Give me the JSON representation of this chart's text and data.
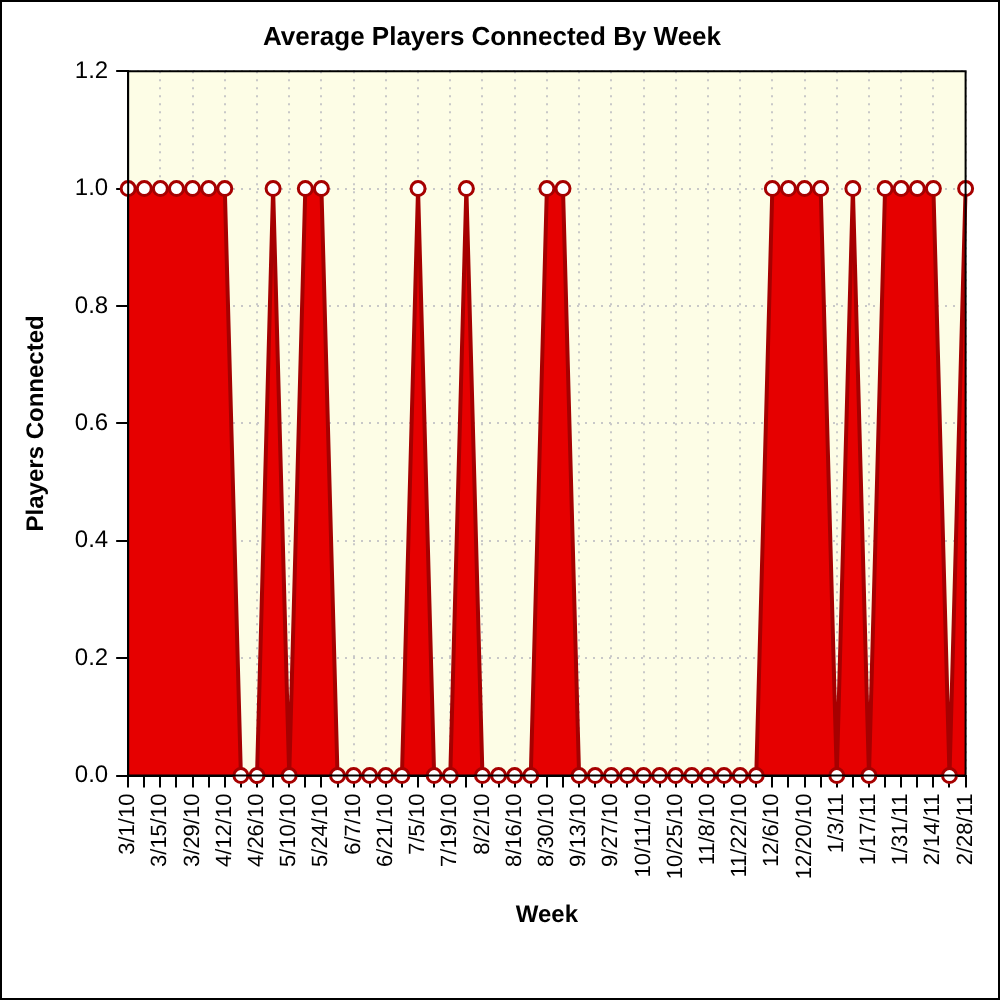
{
  "chart_data": {
    "type": "area",
    "title": "Average Players Connected By Week",
    "xlabel": "Week",
    "ylabel": "Players Connected",
    "categories": [
      "3/1/10",
      null,
      "3/15/10",
      null,
      "3/29/10",
      null,
      "4/12/10",
      null,
      "4/26/10",
      null,
      "5/10/10",
      null,
      "5/24/10",
      null,
      "6/7/10",
      null,
      "6/21/10",
      null,
      "7/5/10",
      null,
      "7/19/10",
      null,
      "8/2/10",
      null,
      "8/16/10",
      null,
      "8/30/10",
      null,
      "9/13/10",
      null,
      "9/27/10",
      null,
      "10/11/10",
      null,
      "10/25/10",
      null,
      "11/8/10",
      null,
      "11/22/10",
      null,
      "12/6/10",
      null,
      "12/20/10",
      null,
      "1/3/11",
      null,
      "1/17/11",
      null,
      "1/31/11",
      null,
      "2/14/11",
      null,
      "2/28/11"
    ],
    "values": [
      1,
      1,
      1,
      1,
      1,
      1,
      1,
      0,
      0,
      1,
      0,
      1,
      1,
      0,
      0,
      0,
      0,
      0,
      1,
      0,
      0,
      1,
      0,
      0,
      0,
      0,
      1,
      1,
      0,
      0,
      0,
      0,
      0,
      0,
      0,
      0,
      0,
      0,
      0,
      0,
      1,
      1,
      1,
      1,
      0,
      1,
      0,
      1,
      1,
      1,
      1,
      0,
      1
    ],
    "color": "#e60000",
    "ylim": [
      0,
      1.2
    ],
    "yticks": [
      {
        "value": 0,
        "label": "0.0"
      },
      0.2,
      0.4,
      0.6,
      0.8,
      {
        "value": 1,
        "label": "1.0"
      },
      1.2
    ],
    "grid": true,
    "marker": "circle"
  }
}
